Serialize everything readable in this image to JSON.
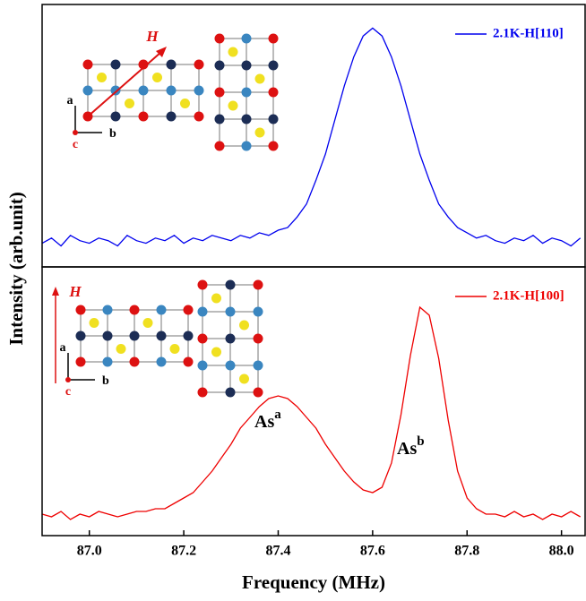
{
  "chart_data": [
    {
      "type": "line",
      "ylabel": "Intensity (arb.unit)",
      "legend": "upper right",
      "inset_labels": [
        "H",
        "a",
        "b",
        "c"
      ],
      "x": [
        86.9,
        86.92,
        86.94,
        86.96,
        86.98,
        87.0,
        87.02,
        87.04,
        87.06,
        87.08,
        87.1,
        87.12,
        87.14,
        87.16,
        87.18,
        87.2,
        87.22,
        87.24,
        87.26,
        87.28,
        87.3,
        87.32,
        87.34,
        87.36,
        87.38,
        87.4,
        87.42,
        87.44,
        87.46,
        87.48,
        87.5,
        87.52,
        87.54,
        87.56,
        87.58,
        87.6,
        87.62,
        87.64,
        87.66,
        87.68,
        87.7,
        87.72,
        87.74,
        87.76,
        87.78,
        87.8,
        87.82,
        87.84,
        87.86,
        87.88,
        87.9,
        87.92,
        87.94,
        87.96,
        87.98,
        88.0,
        88.02,
        88.04
      ],
      "series": [
        {
          "name": "2.1K-H[110]",
          "color": "#0000ee",
          "values": [
            0.09,
            0.11,
            0.08,
            0.12,
            0.1,
            0.09,
            0.11,
            0.1,
            0.08,
            0.12,
            0.1,
            0.09,
            0.11,
            0.1,
            0.12,
            0.09,
            0.11,
            0.1,
            0.12,
            0.11,
            0.1,
            0.12,
            0.11,
            0.13,
            0.12,
            0.14,
            0.15,
            0.19,
            0.24,
            0.33,
            0.43,
            0.56,
            0.69,
            0.8,
            0.88,
            0.91,
            0.88,
            0.8,
            0.69,
            0.56,
            0.43,
            0.33,
            0.24,
            0.19,
            0.15,
            0.13,
            0.11,
            0.12,
            0.1,
            0.09,
            0.11,
            0.1,
            0.12,
            0.09,
            0.11,
            0.1,
            0.08,
            0.11
          ]
        }
      ],
      "xlim": [
        86.9,
        88.05
      ],
      "ylim": [
        0,
        1
      ]
    },
    {
      "type": "line",
      "xlabel": "Frequency (MHz)",
      "legend": "upper right",
      "inset_labels": [
        "H",
        "a",
        "b",
        "c"
      ],
      "peak_labels": [
        {
          "base": "As",
          "sup": "a"
        },
        {
          "base": "As",
          "sup": "b"
        }
      ],
      "x": [
        86.9,
        86.92,
        86.94,
        86.96,
        86.98,
        87.0,
        87.02,
        87.04,
        87.06,
        87.08,
        87.1,
        87.12,
        87.14,
        87.16,
        87.18,
        87.2,
        87.22,
        87.24,
        87.26,
        87.28,
        87.3,
        87.32,
        87.34,
        87.36,
        87.38,
        87.4,
        87.42,
        87.44,
        87.46,
        87.48,
        87.5,
        87.52,
        87.54,
        87.56,
        87.58,
        87.6,
        87.62,
        87.64,
        87.66,
        87.68,
        87.7,
        87.72,
        87.74,
        87.76,
        87.78,
        87.8,
        87.82,
        87.84,
        87.86,
        87.88,
        87.9,
        87.92,
        87.94,
        87.96,
        87.98,
        88.0,
        88.02,
        88.04
      ],
      "series": [
        {
          "name": "2.1K-H[100]",
          "color": "#ee0000",
          "values": [
            0.08,
            0.07,
            0.09,
            0.06,
            0.08,
            0.07,
            0.09,
            0.08,
            0.07,
            0.08,
            0.09,
            0.09,
            0.1,
            0.1,
            0.12,
            0.14,
            0.16,
            0.2,
            0.24,
            0.29,
            0.34,
            0.4,
            0.44,
            0.48,
            0.51,
            0.52,
            0.51,
            0.48,
            0.44,
            0.4,
            0.34,
            0.29,
            0.24,
            0.2,
            0.17,
            0.16,
            0.18,
            0.27,
            0.45,
            0.67,
            0.85,
            0.82,
            0.66,
            0.43,
            0.24,
            0.14,
            0.1,
            0.08,
            0.08,
            0.07,
            0.09,
            0.07,
            0.08,
            0.06,
            0.08,
            0.07,
            0.09,
            0.07
          ]
        }
      ],
      "xlim": [
        86.9,
        88.05
      ],
      "ylim": [
        0,
        1
      ],
      "xticks": [
        {
          "value": 87.0,
          "label": "87.0"
        },
        87.2,
        87.4,
        87.6,
        87.8,
        {
          "value": 88.0,
          "label": "88.0"
        }
      ]
    }
  ]
}
